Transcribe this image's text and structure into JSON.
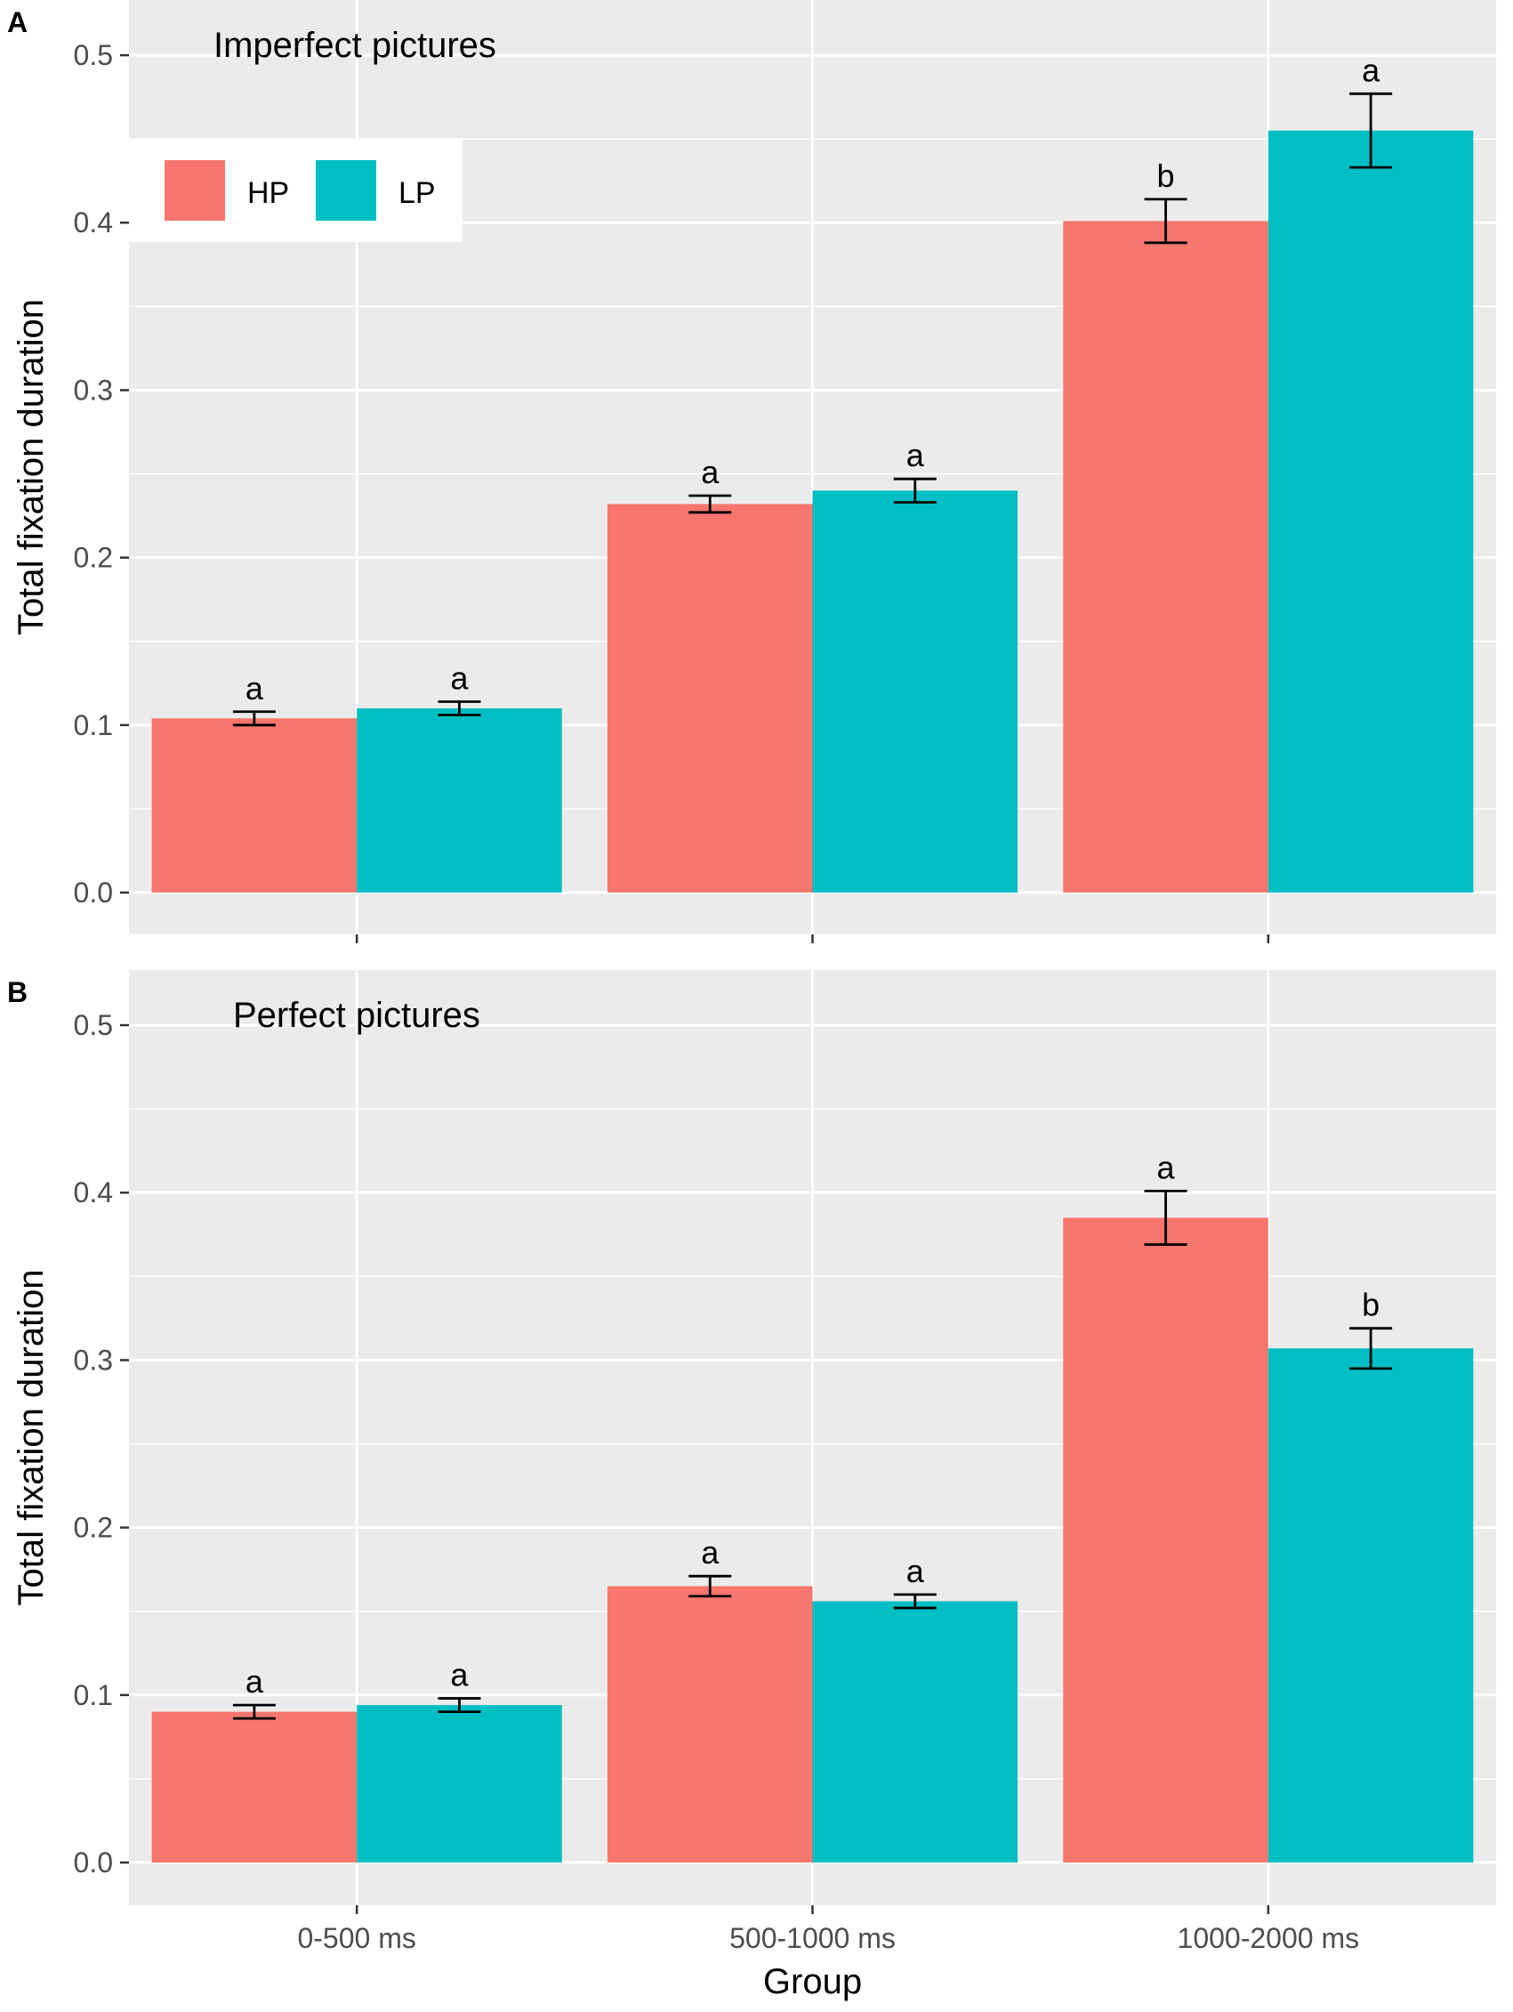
{
  "chart_data": [
    {
      "panel_label": "A",
      "title": "Imperfect pictures",
      "type": "bar",
      "ylabel": "Total fixation duration",
      "xlabel": "",
      "ylim": [
        0,
        0.525
      ],
      "yticks": [
        "0.0",
        "0.1",
        "0.2",
        "0.3",
        "0.4",
        "0.5"
      ],
      "categories": [
        "0-500 ms",
        "500-1000 ms",
        "1000-2000 ms"
      ],
      "show_x_tick_labels": false,
      "legend": {
        "position": "top-left",
        "entries": [
          "HP",
          "LP"
        ]
      },
      "series": [
        {
          "name": "HP",
          "values": [
            0.104,
            0.232,
            0.401
          ],
          "errors": [
            0.004,
            0.005,
            0.013
          ],
          "labels": [
            "a",
            "a",
            "b"
          ]
        },
        {
          "name": "LP",
          "values": [
            0.11,
            0.24,
            0.455
          ],
          "errors": [
            0.004,
            0.007,
            0.022
          ],
          "labels": [
            "a",
            "a",
            "a"
          ]
        }
      ]
    },
    {
      "panel_label": "B",
      "title": "Perfect pictures",
      "type": "bar",
      "ylabel": "Total fixation duration",
      "xlabel": "Group",
      "ylim": [
        0,
        0.525
      ],
      "yticks": [
        "0.0",
        "0.1",
        "0.2",
        "0.3",
        "0.4",
        "0.5"
      ],
      "categories": [
        "0-500 ms",
        "500-1000 ms",
        "1000-2000 ms"
      ],
      "show_x_tick_labels": true,
      "series": [
        {
          "name": "HP",
          "values": [
            0.09,
            0.165,
            0.385
          ],
          "errors": [
            0.004,
            0.006,
            0.016
          ],
          "labels": [
            "a",
            "a",
            "a"
          ]
        },
        {
          "name": "LP",
          "values": [
            0.094,
            0.156,
            0.307
          ],
          "errors": [
            0.004,
            0.004,
            0.012
          ],
          "labels": [
            "a",
            "a",
            "b"
          ]
        }
      ]
    }
  ],
  "colors": {
    "HP": "#F8766D",
    "LP": "#00BFC4",
    "panel_bg": "#EBEBEB",
    "grid": "#FFFFFF",
    "error_bar": "#000000"
  }
}
